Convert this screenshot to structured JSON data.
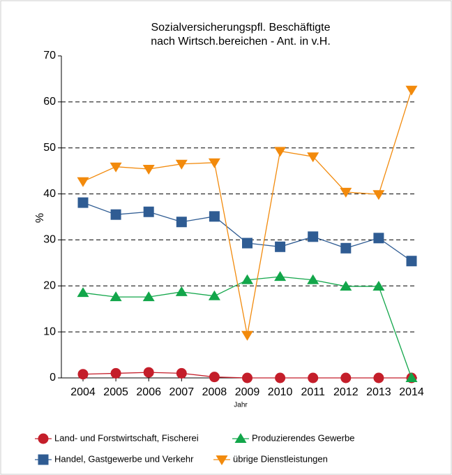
{
  "chart_data": {
    "type": "line",
    "title": [
      "Sozialversicherungspfl. Beschäftigte",
      "nach Wirtsch.bereichen - Ant. in v.H."
    ],
    "xlabel": "Jahr",
    "ylabel": "%",
    "categories": [
      "2004",
      "2005",
      "2006",
      "2007",
      "2008",
      "2009",
      "2010",
      "2011",
      "2012",
      "2013",
      "2014"
    ],
    "ylim": [
      0,
      70
    ],
    "yticks": [
      0,
      10,
      20,
      30,
      40,
      50,
      60,
      70
    ],
    "grid": true,
    "series": [
      {
        "name": "Land- und Forstwirtschaft, Fischerei",
        "color": "#c41e2a",
        "marker": "circle",
        "values": [
          0.8,
          1.0,
          1.2,
          1.0,
          0.2,
          0,
          0,
          0,
          0,
          0,
          0
        ]
      },
      {
        "name": "Produzierendes Gewerbe",
        "color": "#12a64a",
        "marker": "triangle-up",
        "values": [
          18.5,
          17.6,
          17.6,
          18.7,
          17.8,
          21.3,
          22.0,
          21.3,
          19.9,
          19.9,
          0
        ]
      },
      {
        "name": "Handel, Gastgewerbe und Verkehr",
        "color": "#2f5c93",
        "marker": "square",
        "values": [
          38.1,
          35.5,
          36.1,
          33.9,
          35.1,
          29.3,
          28.5,
          30.7,
          28.2,
          30.4,
          25.4
        ]
      },
      {
        "name": "übrige Dienstleistungen",
        "color": "#f28a0c",
        "marker": "triangle-down",
        "values": [
          42.7,
          45.9,
          45.4,
          46.5,
          46.8,
          9.3,
          49.3,
          48.1,
          40.4,
          39.9,
          62.6
        ]
      }
    ]
  }
}
